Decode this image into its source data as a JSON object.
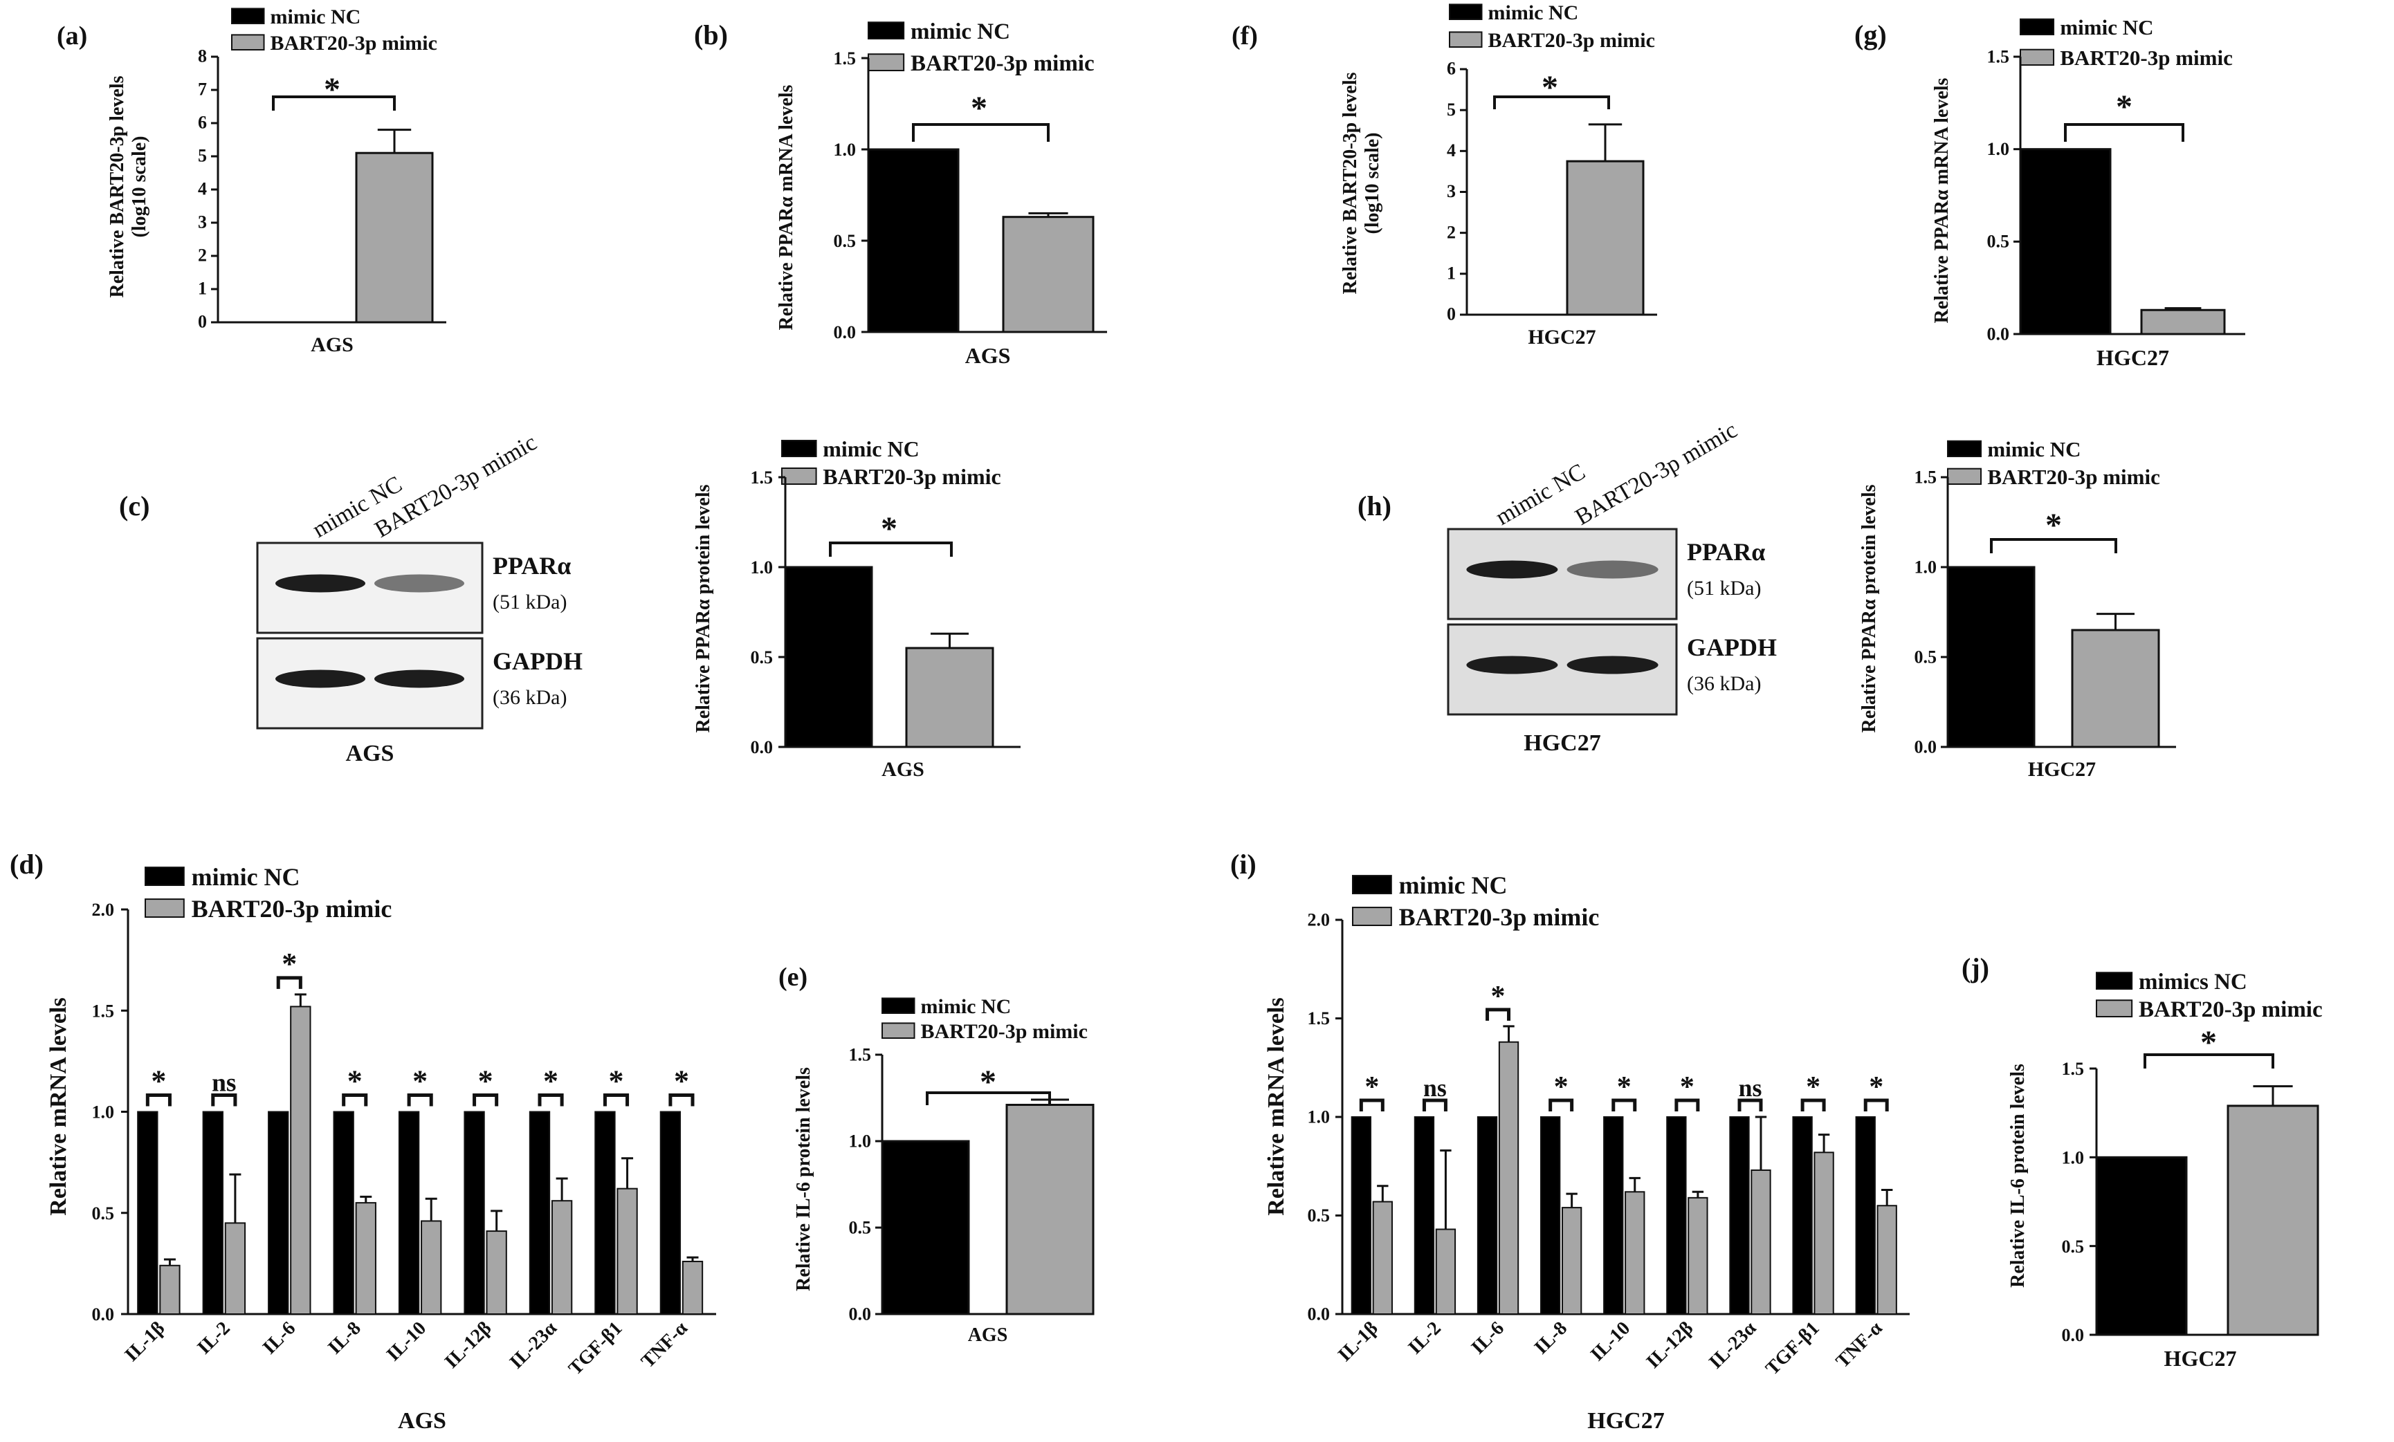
{
  "colors": {
    "nc": "#000000",
    "mimic": "#a6a6a6",
    "axis": "#111111"
  },
  "chart_data": [
    {
      "id": "a",
      "panel_label": "(a)",
      "type": "bar",
      "title": "",
      "ylabel": "Relative BART20-3p levels\n(log10 scale)",
      "xlabel": "AGS",
      "categories": [
        "AGS"
      ],
      "series": [
        {
          "name": "mimic NC",
          "values": [
            0
          ],
          "errors": [
            0
          ]
        },
        {
          "name": "BART20-3p mimic",
          "values": [
            5.1
          ],
          "errors": [
            0.7
          ]
        }
      ],
      "ylim": [
        0,
        8
      ],
      "yticks": [
        0,
        1,
        2,
        3,
        4,
        5,
        6,
        7,
        8
      ],
      "significance": [
        "*"
      ],
      "legend": "top"
    },
    {
      "id": "b",
      "panel_label": "(b)",
      "type": "bar",
      "title": "",
      "ylabel": "Relative PPARα mRNA levels",
      "xlabel": "AGS",
      "categories": [
        "AGS"
      ],
      "series": [
        {
          "name": "mimic NC",
          "values": [
            1.0
          ],
          "errors": [
            0
          ]
        },
        {
          "name": "BART20-3p mimic",
          "values": [
            0.63
          ],
          "errors": [
            0.02
          ]
        }
      ],
      "ylim": [
        0,
        1.5
      ],
      "yticks": [
        0.0,
        0.5,
        1.0,
        1.5
      ],
      "significance": [
        "*"
      ],
      "legend": "top"
    },
    {
      "id": "c",
      "panel_label": "(c)",
      "type": "bar",
      "title": "",
      "ylabel": "Relative PPARα protein levels",
      "xlabel": "AGS",
      "categories": [
        "AGS"
      ],
      "series": [
        {
          "name": "mimic NC",
          "values": [
            1.0
          ],
          "errors": [
            0
          ]
        },
        {
          "name": "BART20-3p mimic",
          "values": [
            0.55
          ],
          "errors": [
            0.08
          ]
        }
      ],
      "ylim": [
        0,
        1.5
      ],
      "yticks": [
        0.0,
        0.5,
        1.0,
        1.5
      ],
      "significance": [
        "*"
      ],
      "legend": "top"
    },
    {
      "id": "d",
      "panel_label": "(d)",
      "type": "bar",
      "title": "",
      "ylabel": "Relative mRNA levels",
      "xlabel": "AGS",
      "categories": [
        "IL-1β",
        "IL-2",
        "IL-6",
        "IL-8",
        "IL-10",
        "IL-12β",
        "IL-23α",
        "TGF-β1",
        "TNF-α"
      ],
      "series": [
        {
          "name": "mimic NC",
          "values": [
            1,
            1,
            1,
            1,
            1,
            1,
            1,
            1,
            1
          ],
          "errors": [
            0,
            0,
            0,
            0,
            0,
            0,
            0,
            0,
            0
          ]
        },
        {
          "name": "BART20-3p mimic",
          "values": [
            0.24,
            0.45,
            1.52,
            0.55,
            0.46,
            0.41,
            0.56,
            0.62,
            0.26
          ],
          "errors": [
            0.03,
            0.24,
            0.06,
            0.03,
            0.11,
            0.1,
            0.11,
            0.15,
            0.02
          ]
        }
      ],
      "ylim": [
        0,
        2.0
      ],
      "yticks": [
        0.0,
        0.5,
        1.0,
        1.5,
        2.0
      ],
      "significance": [
        "*",
        "ns",
        "*",
        "*",
        "*",
        "*",
        "*",
        "*",
        "*"
      ],
      "legend": "top"
    },
    {
      "id": "e",
      "panel_label": "(e)",
      "type": "bar",
      "title": "",
      "ylabel": "Relative IL-6 protein levels",
      "xlabel": "AGS",
      "categories": [
        "AGS"
      ],
      "series": [
        {
          "name": "mimic NC",
          "values": [
            1.0
          ],
          "errors": [
            0
          ]
        },
        {
          "name": "BART20-3p mimic",
          "values": [
            1.21
          ],
          "errors": [
            0.03
          ]
        }
      ],
      "ylim": [
        0,
        1.5
      ],
      "yticks": [
        0.0,
        0.5,
        1.0,
        1.5
      ],
      "significance": [
        "*"
      ],
      "legend": "top"
    },
    {
      "id": "f",
      "panel_label": "(f)",
      "type": "bar",
      "title": "",
      "ylabel": "Relative BART20-3p levels\n(log10 scale)",
      "xlabel": "HGC27",
      "categories": [
        "HGC27"
      ],
      "series": [
        {
          "name": "mimic NC",
          "values": [
            0
          ],
          "errors": [
            0
          ]
        },
        {
          "name": "BART20-3p mimic",
          "values": [
            3.75
          ],
          "errors": [
            0.9
          ]
        }
      ],
      "ylim": [
        0,
        6
      ],
      "yticks": [
        0,
        1,
        2,
        3,
        4,
        5,
        6
      ],
      "significance": [
        "*"
      ],
      "legend": "top"
    },
    {
      "id": "g",
      "panel_label": "(g)",
      "type": "bar",
      "title": "",
      "ylabel": "Relative PPARα mRNA levels",
      "xlabel": "HGC27",
      "categories": [
        "HGC27"
      ],
      "series": [
        {
          "name": "mimic NC",
          "values": [
            1.0
          ],
          "errors": [
            0
          ]
        },
        {
          "name": "BART20-3p mimic",
          "values": [
            0.13
          ],
          "errors": [
            0.01
          ]
        }
      ],
      "ylim": [
        0,
        1.5
      ],
      "yticks": [
        0.0,
        0.5,
        1.0,
        1.5
      ],
      "significance": [
        "*"
      ],
      "legend": "top"
    },
    {
      "id": "h",
      "panel_label": "(h)",
      "type": "bar",
      "title": "",
      "ylabel": "Relative PPARα protein levels",
      "xlabel": "HGC27",
      "categories": [
        "HGC27"
      ],
      "series": [
        {
          "name": "mimic NC",
          "values": [
            1.0
          ],
          "errors": [
            0
          ]
        },
        {
          "name": "BART20-3p mimic",
          "values": [
            0.65
          ],
          "errors": [
            0.09
          ]
        }
      ],
      "ylim": [
        0,
        1.5
      ],
      "yticks": [
        0.0,
        0.5,
        1.0,
        1.5
      ],
      "significance": [
        "*"
      ],
      "legend": "top"
    },
    {
      "id": "i",
      "panel_label": "(i)",
      "type": "bar",
      "title": "",
      "ylabel": "Relative mRNA levels",
      "xlabel": "HGC27",
      "categories": [
        "IL-1β",
        "IL-2",
        "IL-6",
        "IL-8",
        "IL-10",
        "IL-12β",
        "IL-23α",
        "TGF-β1",
        "TNF-α"
      ],
      "series": [
        {
          "name": "mimic NC",
          "values": [
            1,
            1,
            1,
            1,
            1,
            1,
            1,
            1,
            1
          ],
          "errors": [
            0,
            0,
            0,
            0,
            0,
            0,
            0,
            0,
            0
          ]
        },
        {
          "name": "BART20-3p mimic",
          "values": [
            0.57,
            0.43,
            1.38,
            0.54,
            0.62,
            0.59,
            0.73,
            0.82,
            0.55
          ],
          "errors": [
            0.08,
            0.4,
            0.08,
            0.07,
            0.07,
            0.03,
            0.27,
            0.09,
            0.08
          ]
        }
      ],
      "ylim": [
        0,
        2.0
      ],
      "yticks": [
        0.0,
        0.5,
        1.0,
        1.5,
        2.0
      ],
      "significance": [
        "*",
        "ns",
        "*",
        "*",
        "*",
        "*",
        "ns",
        "*",
        "*"
      ],
      "legend": "top"
    },
    {
      "id": "j",
      "panel_label": "(j)",
      "type": "bar",
      "title": "",
      "ylabel": "Relative IL-6 protein levels",
      "xlabel": "HGC27",
      "categories": [
        "HGC27"
      ],
      "series": [
        {
          "name": "mimics NC",
          "values": [
            1.0
          ],
          "errors": [
            0
          ]
        },
        {
          "name": "BART20-3p mimic",
          "values": [
            1.29
          ],
          "errors": [
            0.11
          ]
        }
      ],
      "ylim": [
        0,
        1.5
      ],
      "yticks": [
        0.0,
        0.5,
        1.0,
        1.5
      ],
      "significance": [
        "*"
      ],
      "legend": "top"
    }
  ],
  "blots": [
    {
      "id": "blot-c",
      "lanes": [
        "mimic NC",
        "BART20-3p mimic"
      ],
      "bands": [
        {
          "protein": "PPARα",
          "size": "(51 kDa)"
        },
        {
          "protein": "GAPDH",
          "size": "(36 kDa)"
        }
      ],
      "cell_line": "AGS"
    },
    {
      "id": "blot-h",
      "lanes": [
        "mimic NC",
        "BART20-3p mimic"
      ],
      "bands": [
        {
          "protein": "PPARα",
          "size": "(51 kDa)"
        },
        {
          "protein": "GAPDH",
          "size": "(36 kDa)"
        }
      ],
      "cell_line": "HGC27"
    }
  ]
}
